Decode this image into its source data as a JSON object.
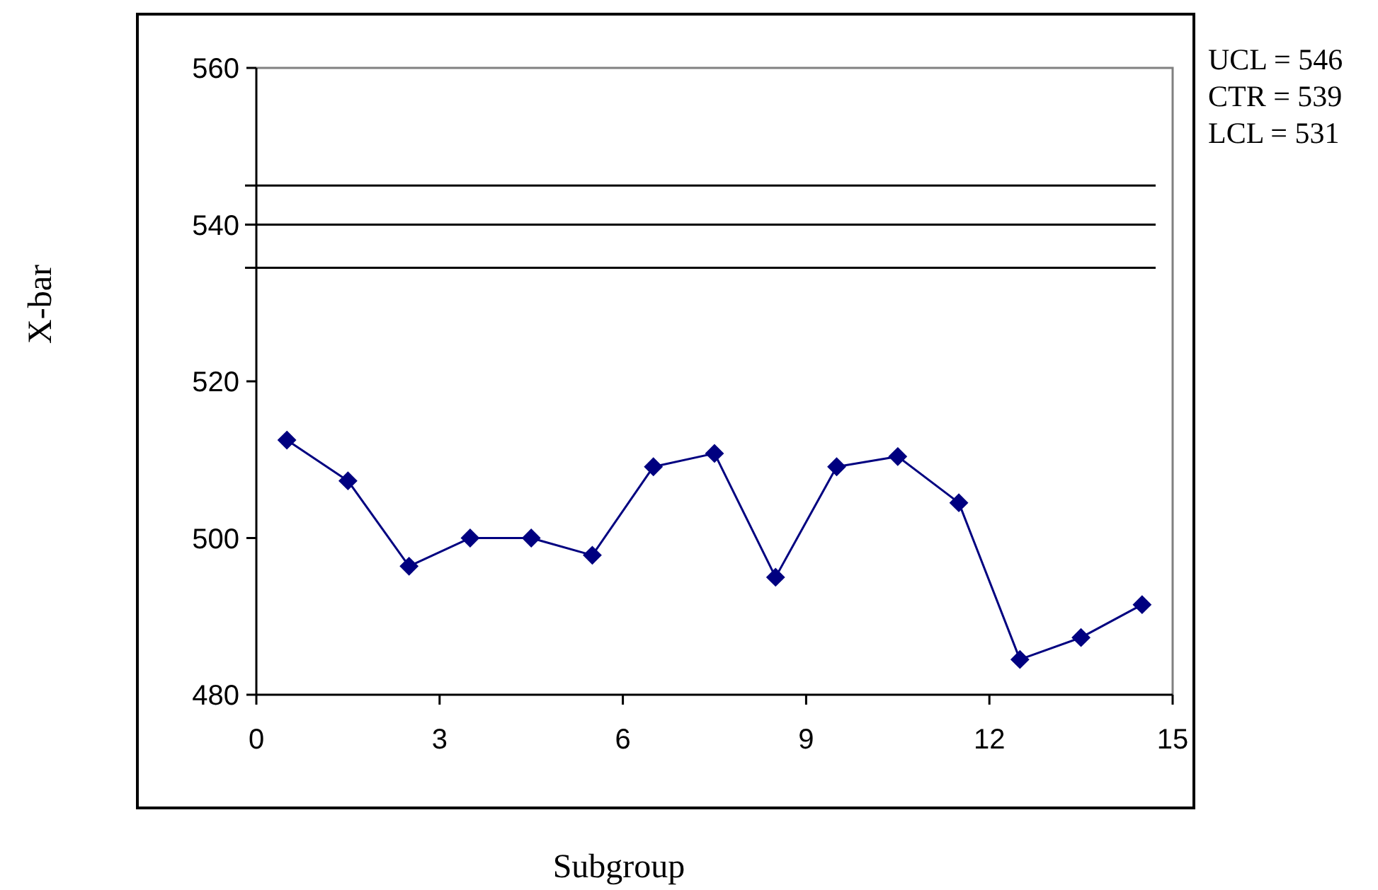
{
  "chart_data": {
    "type": "line",
    "xlabel": "Subgroup",
    "ylabel": "X-bar",
    "x": [
      0.5,
      1.5,
      2.5,
      3.5,
      4.5,
      5.5,
      6.5,
      7.5,
      8.5,
      9.5,
      10.5,
      11.5,
      12.5,
      13.5,
      14.5
    ],
    "series": [
      {
        "color": "#000080",
        "values": [
          512.5,
          507.3,
          496.4,
          500,
          500,
          497.8,
          509.1,
          510.8,
          495,
          509.1,
          510.4,
          504.5,
          484.5,
          487.3,
          491.5
        ]
      }
    ],
    "xlim": [
      0,
      15
    ],
    "xticks": [
      0,
      3,
      6,
      9,
      12,
      15
    ],
    "ylim": [
      480,
      560
    ],
    "yticks": [
      480,
      500,
      520,
      540,
      560
    ],
    "ref_lines": [
      {
        "axis": "y",
        "value": 545,
        "color": "#000000"
      },
      {
        "axis": "y",
        "value": 540,
        "color": "#000000"
      },
      {
        "axis": "y",
        "value": 534.5,
        "color": "#000000"
      }
    ],
    "annotations": [
      "UCL = 546",
      "CTR = 539",
      "LCL = 531"
    ],
    "marker": "diamond",
    "line_style": "solid",
    "grid": false
  }
}
